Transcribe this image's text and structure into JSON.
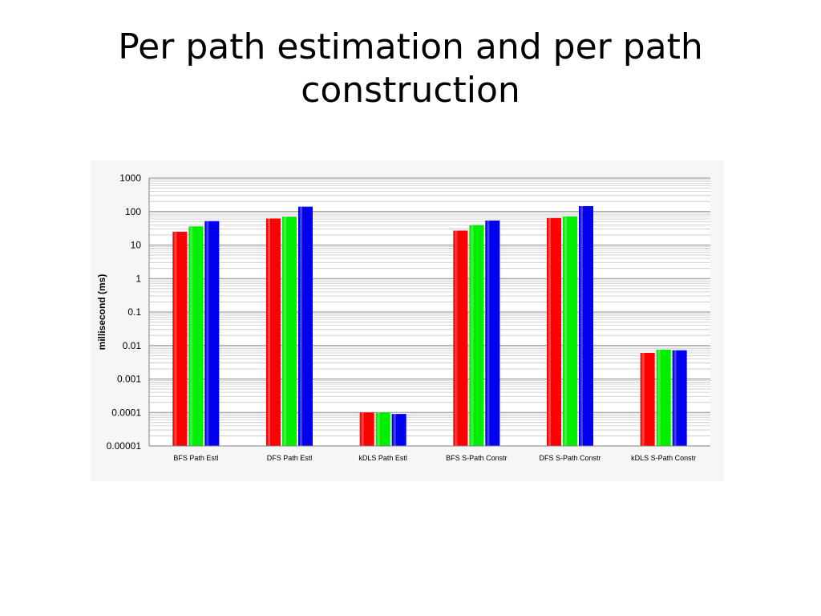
{
  "slide": {
    "title_line1": "Per path estimation and per path",
    "title_line2": "construction"
  },
  "chart_data": {
    "type": "bar",
    "title": "",
    "ylabel": "millisecond (ms)",
    "xlabel": "",
    "yscale": "log",
    "ylim": [
      1e-05,
      1000
    ],
    "yticks": [
      "1000",
      "100",
      "10",
      "1",
      "0.1",
      "0.01",
      "0.001",
      "0.0001",
      "0.00001"
    ],
    "categories": [
      "BFS Path Estl",
      "DFS Path Estl",
      "kDLS Path Estl",
      "BFS S-Path Constr",
      "DFS S-Path Constr",
      "kDLS S-Path Constr"
    ],
    "series": [
      {
        "color": "#ff0000",
        "values": [
          25,
          62,
          0.0001,
          27,
          64,
          0.006
        ]
      },
      {
        "color": "#00ee00",
        "values": [
          36,
          70,
          0.0001,
          39,
          72,
          0.0075
        ]
      },
      {
        "color": "#0000ee",
        "values": [
          52,
          140,
          9e-05,
          54,
          145,
          0.0072
        ]
      }
    ],
    "grid": true,
    "legend": "none"
  }
}
